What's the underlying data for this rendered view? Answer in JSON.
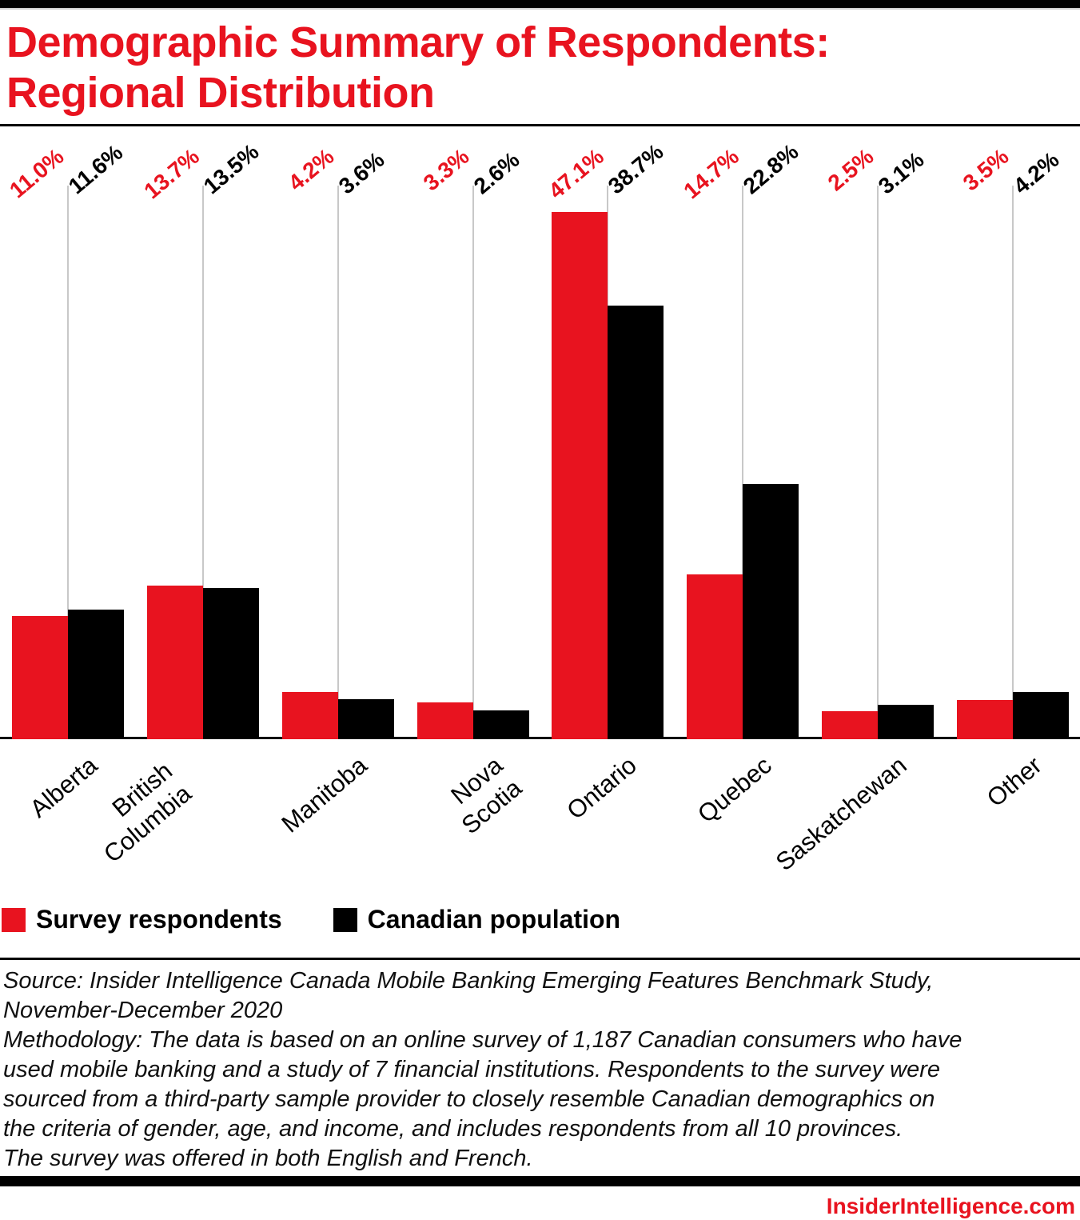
{
  "page": {
    "title_line1": "Demographic Summary of Respondents:",
    "title_line2": "Regional Distribution"
  },
  "colors": {
    "accent_red": "#e8131f",
    "bar_black": "#000000",
    "gridline_gray": "#c8c8c8"
  },
  "chart_data": {
    "type": "bar",
    "title": "Demographic Summary of Respondents: Regional Distribution",
    "unit": "%",
    "categories": [
      "Alberta",
      "British Columbia",
      "Manitoba",
      "Nova Scotia",
      "Ontario",
      "Quebec",
      "Saskatchewan",
      "Other"
    ],
    "categories_display": [
      [
        "Alberta"
      ],
      [
        "British",
        "Columbia"
      ],
      [
        "Manitoba"
      ],
      [
        "Nova Scotia"
      ],
      [
        "Ontario"
      ],
      [
        "Quebec"
      ],
      [
        "Saskatchewan"
      ],
      [
        "Other"
      ]
    ],
    "series": [
      {
        "name": "Survey respondents",
        "color": "#e8131f",
        "values": [
          11.0,
          13.7,
          4.2,
          3.3,
          47.1,
          14.7,
          2.5,
          3.5
        ],
        "labels": [
          "11.0%",
          "13.7%",
          "4.2%",
          "3.3%",
          "47.1%",
          "14.7%",
          "2.5%",
          "3.5%"
        ]
      },
      {
        "name": "Canadian population",
        "color": "#000000",
        "values": [
          11.6,
          13.5,
          3.6,
          2.6,
          38.7,
          22.8,
          3.1,
          4.2
        ],
        "labels": [
          "11.6%",
          "13.5%",
          "3.6%",
          "2.6%",
          "38.7%",
          "22.8%",
          "3.1%",
          "4.2%"
        ]
      }
    ],
    "ylim": [
      0,
      50
    ],
    "grid": "one vertical gray gridline per category group",
    "value_labels": "rotated -40deg above each bar pair",
    "legend_position": "bottom-left"
  },
  "legend": {
    "items": [
      {
        "label": "Survey respondents",
        "color": "#e8131f"
      },
      {
        "label": "Canadian population",
        "color": "#000000"
      }
    ]
  },
  "footer": {
    "source_lines": [
      "Source: Insider Intelligence Canada Mobile Banking Emerging Features Benchmark Study,",
      "November-December 2020",
      "Methodology: The data is based on an online survey of 1,187 Canadian consumers who have",
      "used mobile banking and a study of 7 financial institutions. Respondents to the survey were",
      "sourced from a third-party sample provider to closely resemble Canadian demographics on",
      "the criteria of gender, age, and income, and includes respondents from all 10 provinces.",
      "The survey was offered in both English and French."
    ],
    "brand": "InsiderIntelligence.com"
  }
}
